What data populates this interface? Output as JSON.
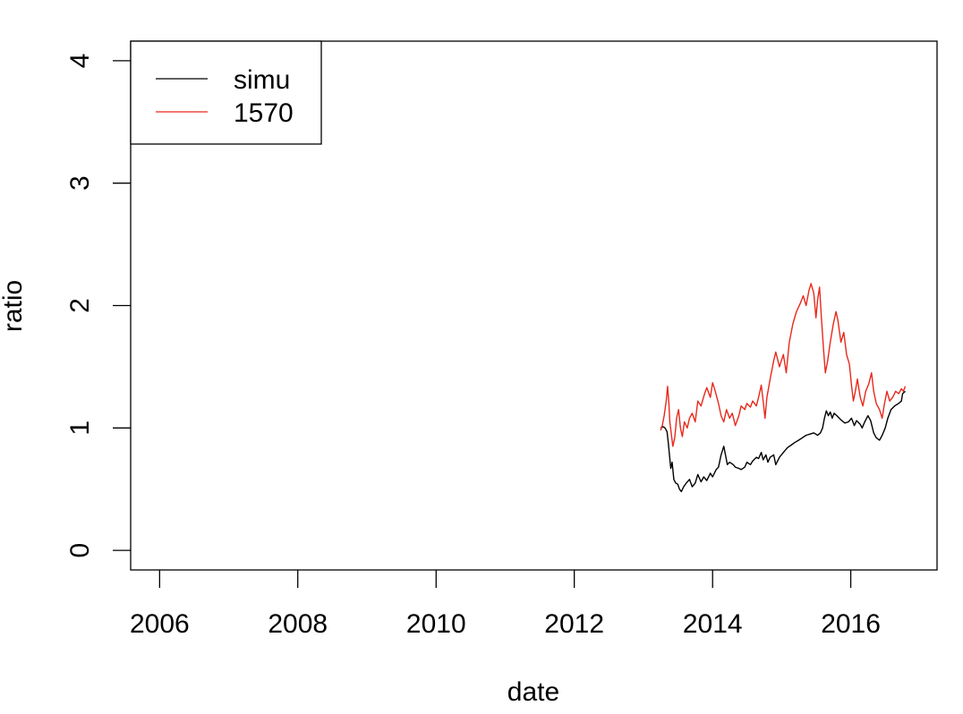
{
  "chart_data": {
    "type": "line",
    "title": "",
    "xlabel": "date",
    "ylabel": "ratio",
    "xlim": [
      "2005-08-01",
      "2017-04-01"
    ],
    "ylim": [
      -0.16,
      4.16
    ],
    "x_ticks": [
      "2006",
      "2008",
      "2010",
      "2012",
      "2014",
      "2016"
    ],
    "y_ticks": [
      "0",
      "1",
      "2",
      "3",
      "4"
    ],
    "grid": false,
    "legend": {
      "position": "top-left"
    },
    "series": [
      {
        "name": "simu",
        "color": "#000000",
        "points": [
          [
            "2013-04-01",
            1.0
          ],
          [
            "2013-04-15",
            1.01
          ],
          [
            "2013-04-25",
            1.0
          ],
          [
            "2013-05-05",
            0.97
          ],
          [
            "2013-05-12",
            0.88
          ],
          [
            "2013-05-20",
            0.75
          ],
          [
            "2013-05-25",
            0.67
          ],
          [
            "2013-06-01",
            0.72
          ],
          [
            "2013-06-10",
            0.58
          ],
          [
            "2013-06-20",
            0.55
          ],
          [
            "2013-07-01",
            0.54
          ],
          [
            "2013-07-10",
            0.5
          ],
          [
            "2013-07-20",
            0.48
          ],
          [
            "2013-08-01",
            0.52
          ],
          [
            "2013-08-15",
            0.55
          ],
          [
            "2013-09-01",
            0.58
          ],
          [
            "2013-09-15",
            0.52
          ],
          [
            "2013-10-01",
            0.55
          ],
          [
            "2013-10-15",
            0.62
          ],
          [
            "2013-11-01",
            0.56
          ],
          [
            "2013-11-15",
            0.6
          ],
          [
            "2013-12-01",
            0.57
          ],
          [
            "2013-12-20",
            0.63
          ],
          [
            "2014-01-01",
            0.6
          ],
          [
            "2014-01-20",
            0.66
          ],
          [
            "2014-02-01",
            0.68
          ],
          [
            "2014-02-15",
            0.78
          ],
          [
            "2014-03-01",
            0.85
          ],
          [
            "2014-03-10",
            0.78
          ],
          [
            "2014-03-20",
            0.7
          ],
          [
            "2014-04-01",
            0.72
          ],
          [
            "2014-04-20",
            0.7
          ],
          [
            "2014-05-01",
            0.68
          ],
          [
            "2014-05-20",
            0.67
          ],
          [
            "2014-06-01",
            0.66
          ],
          [
            "2014-06-20",
            0.68
          ],
          [
            "2014-07-01",
            0.72
          ],
          [
            "2014-07-20",
            0.7
          ],
          [
            "2014-08-01",
            0.73
          ],
          [
            "2014-08-20",
            0.76
          ],
          [
            "2014-09-01",
            0.75
          ],
          [
            "2014-09-15",
            0.8
          ],
          [
            "2014-09-25",
            0.74
          ],
          [
            "2014-10-10",
            0.78
          ],
          [
            "2014-10-20",
            0.72
          ],
          [
            "2014-11-01",
            0.76
          ],
          [
            "2014-11-20",
            0.78
          ],
          [
            "2014-12-01",
            0.7
          ],
          [
            "2014-12-20",
            0.76
          ],
          [
            "2015-01-10",
            0.8
          ],
          [
            "2015-02-01",
            0.84
          ],
          [
            "2015-02-20",
            0.86
          ],
          [
            "2015-03-10",
            0.88
          ],
          [
            "2015-04-01",
            0.9
          ],
          [
            "2015-04-20",
            0.92
          ],
          [
            "2015-05-10",
            0.94
          ],
          [
            "2015-06-01",
            0.95
          ],
          [
            "2015-06-20",
            0.96
          ],
          [
            "2015-07-10",
            0.94
          ],
          [
            "2015-07-25",
            0.96
          ],
          [
            "2015-08-05",
            1.0
          ],
          [
            "2015-08-15",
            1.08
          ],
          [
            "2015-08-25",
            1.14
          ],
          [
            "2015-09-05",
            1.1
          ],
          [
            "2015-09-15",
            1.13
          ],
          [
            "2015-09-25",
            1.08
          ],
          [
            "2015-10-05",
            1.12
          ],
          [
            "2015-10-20",
            1.1
          ],
          [
            "2015-11-01",
            1.08
          ],
          [
            "2015-11-15",
            1.06
          ],
          [
            "2015-12-01",
            1.04
          ],
          [
            "2015-12-20",
            1.05
          ],
          [
            "2016-01-05",
            1.08
          ],
          [
            "2016-01-20",
            1.02
          ],
          [
            "2016-02-01",
            1.06
          ],
          [
            "2016-02-20",
            1.03
          ],
          [
            "2016-03-01",
            1.0
          ],
          [
            "2016-03-15",
            1.05
          ],
          [
            "2016-04-01",
            1.1
          ],
          [
            "2016-04-15",
            1.06
          ],
          [
            "2016-05-01",
            0.96
          ],
          [
            "2016-05-15",
            0.92
          ],
          [
            "2016-06-01",
            0.9
          ],
          [
            "2016-06-15",
            0.94
          ],
          [
            "2016-07-01",
            1.0
          ],
          [
            "2016-07-15",
            1.08
          ],
          [
            "2016-08-01",
            1.15
          ],
          [
            "2016-08-20",
            1.18
          ],
          [
            "2016-09-10",
            1.2
          ],
          [
            "2016-09-25",
            1.22
          ],
          [
            "2016-10-01",
            1.28
          ],
          [
            "2016-10-15",
            1.3
          ]
        ]
      },
      {
        "name": "1570",
        "color": "#e8291c",
        "points": [
          [
            "2013-04-01",
            0.98
          ],
          [
            "2013-04-10",
            1.02
          ],
          [
            "2013-04-20",
            1.1
          ],
          [
            "2013-05-01",
            1.22
          ],
          [
            "2013-05-08",
            1.34
          ],
          [
            "2013-05-15",
            1.2
          ],
          [
            "2013-05-20",
            1.05
          ],
          [
            "2013-05-28",
            0.95
          ],
          [
            "2013-06-05",
            0.85
          ],
          [
            "2013-06-15",
            0.92
          ],
          [
            "2013-06-25",
            1.08
          ],
          [
            "2013-07-05",
            1.15
          ],
          [
            "2013-07-15",
            1.0
          ],
          [
            "2013-07-25",
            0.93
          ],
          [
            "2013-08-05",
            1.05
          ],
          [
            "2013-08-20",
            1.0
          ],
          [
            "2013-09-01",
            1.08
          ],
          [
            "2013-09-15",
            1.12
          ],
          [
            "2013-10-01",
            1.05
          ],
          [
            "2013-10-15",
            1.22
          ],
          [
            "2013-11-01",
            1.18
          ],
          [
            "2013-11-20",
            1.28
          ],
          [
            "2013-12-01",
            1.33
          ],
          [
            "2013-12-20",
            1.25
          ],
          [
            "2014-01-01",
            1.37
          ],
          [
            "2014-01-15",
            1.3
          ],
          [
            "2014-02-01",
            1.2
          ],
          [
            "2014-02-15",
            1.1
          ],
          [
            "2014-03-01",
            1.05
          ],
          [
            "2014-03-15",
            1.15
          ],
          [
            "2014-04-01",
            1.08
          ],
          [
            "2014-04-15",
            1.12
          ],
          [
            "2014-05-01",
            1.02
          ],
          [
            "2014-05-20",
            1.1
          ],
          [
            "2014-06-01",
            1.18
          ],
          [
            "2014-06-20",
            1.15
          ],
          [
            "2014-07-01",
            1.2
          ],
          [
            "2014-07-20",
            1.17
          ],
          [
            "2014-08-01",
            1.22
          ],
          [
            "2014-08-20",
            1.18
          ],
          [
            "2014-09-01",
            1.25
          ],
          [
            "2014-09-15",
            1.35
          ],
          [
            "2014-09-25",
            1.22
          ],
          [
            "2014-10-05",
            1.08
          ],
          [
            "2014-10-15",
            1.25
          ],
          [
            "2014-11-01",
            1.4
          ],
          [
            "2014-11-20",
            1.55
          ],
          [
            "2014-12-01",
            1.62
          ],
          [
            "2014-12-20",
            1.5
          ],
          [
            "2015-01-10",
            1.6
          ],
          [
            "2015-01-25",
            1.45
          ],
          [
            "2015-02-10",
            1.7
          ],
          [
            "2015-03-01",
            1.85
          ],
          [
            "2015-03-20",
            1.95
          ],
          [
            "2015-04-10",
            2.02
          ],
          [
            "2015-04-25",
            2.08
          ],
          [
            "2015-05-10",
            2.0
          ],
          [
            "2015-05-25",
            2.12
          ],
          [
            "2015-06-05",
            2.18
          ],
          [
            "2015-06-20",
            2.1
          ],
          [
            "2015-07-01",
            1.9
          ],
          [
            "2015-07-10",
            2.05
          ],
          [
            "2015-07-20",
            2.15
          ],
          [
            "2015-07-30",
            1.9
          ],
          [
            "2015-08-10",
            1.65
          ],
          [
            "2015-08-20",
            1.45
          ],
          [
            "2015-09-01",
            1.55
          ],
          [
            "2015-09-15",
            1.7
          ],
          [
            "2015-10-01",
            1.85
          ],
          [
            "2015-10-15",
            1.95
          ],
          [
            "2015-10-25",
            1.88
          ],
          [
            "2015-11-10",
            1.7
          ],
          [
            "2015-11-25",
            1.78
          ],
          [
            "2015-12-10",
            1.6
          ],
          [
            "2015-12-25",
            1.52
          ],
          [
            "2016-01-05",
            1.35
          ],
          [
            "2016-01-15",
            1.22
          ],
          [
            "2016-01-25",
            1.3
          ],
          [
            "2016-02-05",
            1.4
          ],
          [
            "2016-02-20",
            1.25
          ],
          [
            "2016-03-05",
            1.18
          ],
          [
            "2016-03-20",
            1.3
          ],
          [
            "2016-04-05",
            1.36
          ],
          [
            "2016-04-20",
            1.45
          ],
          [
            "2016-05-01",
            1.3
          ],
          [
            "2016-05-15",
            1.2
          ],
          [
            "2016-06-01",
            1.15
          ],
          [
            "2016-06-15",
            1.08
          ],
          [
            "2016-06-25",
            1.18
          ],
          [
            "2016-07-10",
            1.3
          ],
          [
            "2016-07-25",
            1.22
          ],
          [
            "2016-08-10",
            1.25
          ],
          [
            "2016-08-25",
            1.3
          ],
          [
            "2016-09-10",
            1.28
          ],
          [
            "2016-09-25",
            1.32
          ],
          [
            "2016-10-05",
            1.3
          ],
          [
            "2016-10-15",
            1.34
          ]
        ]
      }
    ]
  }
}
